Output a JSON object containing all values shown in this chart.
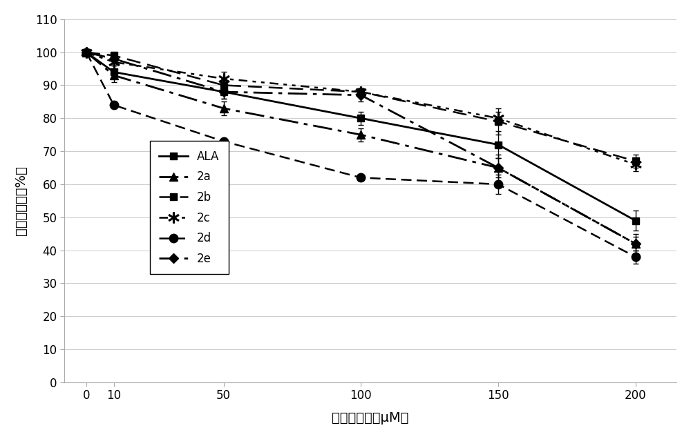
{
  "x": [
    0,
    10,
    50,
    100,
    150,
    200
  ],
  "ALA": [
    100,
    94,
    88,
    80,
    72,
    49
  ],
  "2a": [
    100,
    93,
    83,
    75,
    65,
    42
  ],
  "2b": [
    100,
    99,
    90,
    88,
    79,
    67
  ],
  "2c": [
    100,
    97,
    92,
    88,
    80,
    66
  ],
  "2d": [
    100,
    84,
    73,
    62,
    60,
    38
  ],
  "2e": [
    100,
    98,
    88,
    87,
    65,
    42
  ],
  "ALA_err": [
    0,
    2,
    2,
    2,
    4,
    3
  ],
  "2a_err": [
    0,
    2,
    2,
    2,
    3,
    3
  ],
  "2b_err": [
    0,
    1,
    2,
    1,
    4,
    2
  ],
  "2c_err": [
    0,
    1,
    2,
    1,
    2,
    2
  ],
  "2d_err": [
    0,
    1,
    1,
    1,
    3,
    2
  ],
  "2e_err": [
    0,
    1,
    2,
    2,
    4,
    2
  ],
  "xlabel": "化合物浓度（μM）",
  "ylabel": "细胞存活率（%）",
  "ylim": [
    0,
    110
  ],
  "yticks": [
    0,
    10,
    20,
    30,
    40,
    50,
    60,
    70,
    80,
    90,
    100,
    110
  ],
  "xticks": [
    0,
    10,
    50,
    100,
    150,
    200
  ],
  "bg_color": "#ffffff"
}
